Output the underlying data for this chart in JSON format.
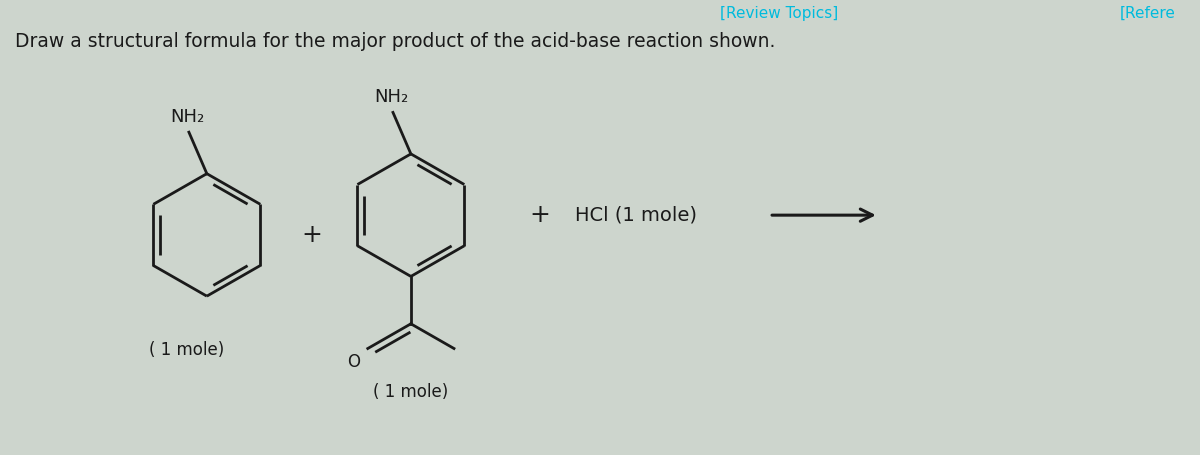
{
  "title_text": "Draw a structural formula for the major product of the acid-base reaction shown.",
  "title_fontsize": 13.5,
  "title_color": "#1a1a1a",
  "background_color": "#cdd5cd",
  "line_color": "#1a1a1a",
  "line_width": 2.0,
  "mol1_label_top": "NH₂",
  "mol1_label_bottom": "( 1 mole)",
  "mol2_label_top": "NH₂",
  "mol2_label_bottom": "( 1 mole)",
  "hcl_text": "HCl (1 mole)",
  "review_topics_text": "[Review Topics]",
  "refere_text": "[Refere",
  "review_topics_color": "#00bbdd",
  "refere_color": "#00bbdd"
}
